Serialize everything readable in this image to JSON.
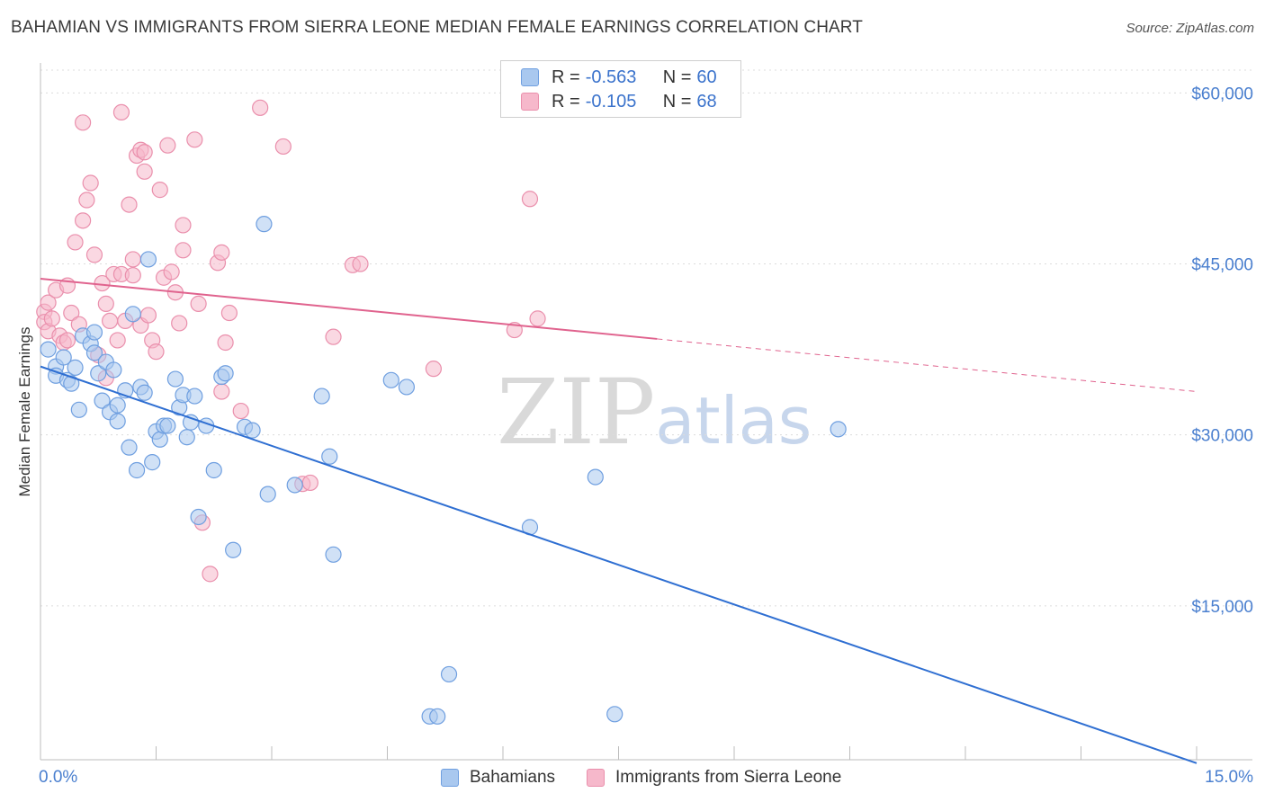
{
  "title": "BAHAMIAN VS IMMIGRANTS FROM SIERRA LEONE MEDIAN FEMALE EARNINGS CORRELATION CHART",
  "source": "Source: ZipAtlas.com",
  "watermark": {
    "zip": "ZIP",
    "atlas": "atlas"
  },
  "legend_top": {
    "rows": [
      {
        "r_label": "R = ",
        "r_value": "-0.563",
        "n_label": "N = ",
        "n_value": "60"
      },
      {
        "r_label": "R = ",
        "r_value": "-0.105",
        "n_label": "N = ",
        "n_value": "68"
      }
    ]
  },
  "legend_bottom": {
    "series1": "Bahamians",
    "series2": "Immigrants from Sierra Leone"
  },
  "colors": {
    "blue_fill": "#a9c8ef",
    "blue_stroke": "#6f9fe0",
    "blue_line": "#2f6fd2",
    "pink_fill": "#f6b8cb",
    "pink_stroke": "#ea8fac",
    "pink_line": "#e0638e",
    "grid": "#dcdcdc",
    "tick_text": "#4a7fcf"
  },
  "chart_data": {
    "type": "scatter",
    "title": "BAHAMIAN VS IMMIGRANTS FROM SIERRA LEONE MEDIAN FEMALE EARNINGS CORRELATION CHART",
    "xlabel": "",
    "ylabel": "Median Female Earnings",
    "xlim": [
      0,
      15
    ],
    "ylim": [
      1500,
      62000
    ],
    "x_tick_labels": [
      "0.0%",
      "15.0%"
    ],
    "y_ticks": [
      15000,
      30000,
      45000,
      60000
    ],
    "y_tick_labels": [
      "$15,000",
      "$30,000",
      "$45,000",
      "$60,000"
    ],
    "grid": true,
    "legend_position": "top-center",
    "series": [
      {
        "name": "Bahamians",
        "r": -0.563,
        "n": 60,
        "trend": {
          "x0": 0.0,
          "y0": 36000,
          "x1": 15.0,
          "y1": 1200,
          "dashed_from": null
        },
        "points": [
          [
            0.1,
            37500
          ],
          [
            0.2,
            36000
          ],
          [
            0.2,
            35200
          ],
          [
            0.3,
            36800
          ],
          [
            0.35,
            34800
          ],
          [
            0.4,
            34500
          ],
          [
            0.45,
            35900
          ],
          [
            0.5,
            32200
          ],
          [
            0.55,
            38700
          ],
          [
            0.65,
            38000
          ],
          [
            0.7,
            37200
          ],
          [
            0.7,
            39000
          ],
          [
            0.75,
            35400
          ],
          [
            0.8,
            33000
          ],
          [
            0.85,
            36400
          ],
          [
            0.9,
            32000
          ],
          [
            0.95,
            35700
          ],
          [
            1.0,
            32600
          ],
          [
            1.0,
            31200
          ],
          [
            1.1,
            33900
          ],
          [
            1.15,
            28900
          ],
          [
            1.2,
            40600
          ],
          [
            1.25,
            26900
          ],
          [
            1.3,
            34200
          ],
          [
            1.35,
            33700
          ],
          [
            1.4,
            45400
          ],
          [
            1.45,
            27600
          ],
          [
            1.5,
            30300
          ],
          [
            1.55,
            29600
          ],
          [
            1.6,
            30800
          ],
          [
            1.65,
            30800
          ],
          [
            1.75,
            34900
          ],
          [
            1.8,
            32400
          ],
          [
            1.85,
            33500
          ],
          [
            1.9,
            29800
          ],
          [
            1.95,
            31100
          ],
          [
            2.0,
            33400
          ],
          [
            2.05,
            22800
          ],
          [
            2.15,
            30800
          ],
          [
            2.25,
            26900
          ],
          [
            2.35,
            35100
          ],
          [
            2.4,
            35400
          ],
          [
            2.5,
            19900
          ],
          [
            2.65,
            30700
          ],
          [
            2.75,
            30400
          ],
          [
            2.9,
            48500
          ],
          [
            2.95,
            24800
          ],
          [
            3.3,
            25600
          ],
          [
            3.65,
            33400
          ],
          [
            3.75,
            28100
          ],
          [
            3.8,
            19500
          ],
          [
            4.55,
            34800
          ],
          [
            4.75,
            34200
          ],
          [
            5.05,
            5300
          ],
          [
            5.15,
            5300
          ],
          [
            5.3,
            9000
          ],
          [
            6.35,
            21900
          ],
          [
            7.2,
            26300
          ],
          [
            7.45,
            5500
          ],
          [
            10.35,
            30500
          ]
        ]
      },
      {
        "name": "Immigrants from Sierra Leone",
        "r": -0.105,
        "n": 68,
        "trend": {
          "x0": 0.0,
          "y0": 43700,
          "x1": 15.0,
          "y1": 33800,
          "dashed_from": 8.0
        },
        "points": [
          [
            0.05,
            40800
          ],
          [
            0.05,
            39900
          ],
          [
            0.1,
            41600
          ],
          [
            0.1,
            39100
          ],
          [
            0.15,
            40200
          ],
          [
            0.2,
            42700
          ],
          [
            0.25,
            38700
          ],
          [
            0.3,
            38100
          ],
          [
            0.35,
            38300
          ],
          [
            0.35,
            43100
          ],
          [
            0.4,
            40700
          ],
          [
            0.45,
            46900
          ],
          [
            0.5,
            39700
          ],
          [
            0.55,
            57400
          ],
          [
            0.55,
            48800
          ],
          [
            0.6,
            50600
          ],
          [
            0.65,
            52100
          ],
          [
            0.7,
            45800
          ],
          [
            0.75,
            37000
          ],
          [
            0.8,
            43300
          ],
          [
            0.85,
            41500
          ],
          [
            0.85,
            35000
          ],
          [
            0.9,
            40000
          ],
          [
            0.95,
            44100
          ],
          [
            1.0,
            38300
          ],
          [
            1.05,
            58300
          ],
          [
            1.05,
            44100
          ],
          [
            1.1,
            40000
          ],
          [
            1.15,
            50200
          ],
          [
            1.2,
            44000
          ],
          [
            1.2,
            45400
          ],
          [
            1.25,
            54500
          ],
          [
            1.3,
            55000
          ],
          [
            1.3,
            39600
          ],
          [
            1.35,
            54800
          ],
          [
            1.35,
            53100
          ],
          [
            1.4,
            40500
          ],
          [
            1.45,
            38300
          ],
          [
            1.5,
            37300
          ],
          [
            1.55,
            51500
          ],
          [
            1.6,
            43800
          ],
          [
            1.65,
            55400
          ],
          [
            1.7,
            44300
          ],
          [
            1.75,
            42500
          ],
          [
            1.8,
            39800
          ],
          [
            1.85,
            48400
          ],
          [
            1.85,
            46200
          ],
          [
            2.0,
            55900
          ],
          [
            2.05,
            41500
          ],
          [
            2.1,
            22300
          ],
          [
            2.2,
            17800
          ],
          [
            2.3,
            45100
          ],
          [
            2.35,
            46000
          ],
          [
            2.35,
            33800
          ],
          [
            2.4,
            38100
          ],
          [
            2.45,
            40700
          ],
          [
            2.6,
            32100
          ],
          [
            2.85,
            58700
          ],
          [
            3.15,
            55300
          ],
          [
            3.4,
            25700
          ],
          [
            3.5,
            25800
          ],
          [
            3.8,
            38600
          ],
          [
            4.05,
            44900
          ],
          [
            4.15,
            45000
          ],
          [
            5.1,
            35800
          ],
          [
            6.15,
            39200
          ],
          [
            6.35,
            50700
          ],
          [
            6.45,
            40200
          ]
        ]
      }
    ]
  }
}
